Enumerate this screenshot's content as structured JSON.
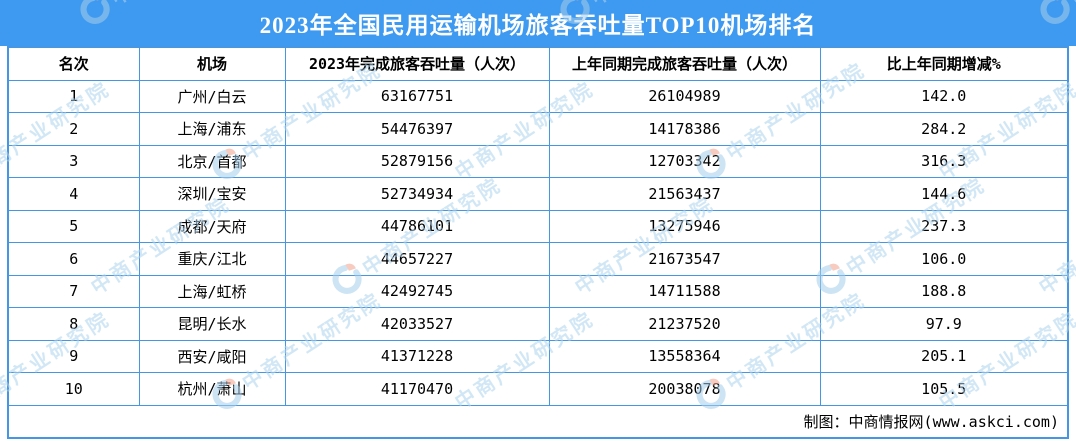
{
  "title": "2023年全国民用运输机场旅客吞吐量TOP10机场排名",
  "table": {
    "columns": [
      "名次",
      "机场",
      "2023年完成旅客吞吐量（人次）",
      "上年同期完成旅客吞吐量（人次）",
      "比上年同期增减%"
    ],
    "rows": [
      [
        "1",
        "广州/白云",
        "63167751",
        "26104989",
        "142.0"
      ],
      [
        "2",
        "上海/浦东",
        "54476397",
        "14178386",
        "284.2"
      ],
      [
        "3",
        "北京/首都",
        "52879156",
        "12703342",
        "316.3"
      ],
      [
        "4",
        "深圳/宝安",
        "52734934",
        "21563437",
        "144.6"
      ],
      [
        "5",
        "成都/天府",
        "44786101",
        "13275946",
        "237.3"
      ],
      [
        "6",
        "重庆/江北",
        "44657227",
        "21673547",
        "106.0"
      ],
      [
        "7",
        "上海/虹桥",
        "42492745",
        "14711588",
        "188.8"
      ],
      [
        "8",
        "昆明/长水",
        "42033527",
        "21237520",
        "97.9"
      ],
      [
        "9",
        "西安/咸阳",
        "41371228",
        "13558364",
        "205.1"
      ],
      [
        "10",
        "杭州/萧山",
        "41170470",
        "20038078",
        "105.5"
      ]
    ]
  },
  "footer": {
    "credit": "制图：中商情报网(www.askci.com)"
  },
  "watermark": {
    "text": "中商产业研究院",
    "logo": "askci-logo"
  },
  "chart_data": {
    "type": "table",
    "title": "2023年全国民用运输机场旅客吞吐量TOP10机场排名",
    "categories": [
      "广州/白云",
      "上海/浦东",
      "北京/首都",
      "深圳/宝安",
      "成都/天府",
      "重庆/江北",
      "上海/虹桥",
      "昆明/长水",
      "西安/咸阳",
      "杭州/萧山"
    ],
    "series": [
      {
        "name": "2023年完成旅客吞吐量（人次）",
        "values": [
          63167751,
          54476397,
          52879156,
          52734934,
          44786101,
          44657227,
          42492745,
          42033527,
          41371228,
          41170470
        ]
      },
      {
        "name": "上年同期完成旅客吞吐量（人次）",
        "values": [
          26104989,
          14178386,
          12703342,
          21563437,
          13275946,
          21673547,
          14711588,
          21237520,
          13558364,
          20038078
        ]
      },
      {
        "name": "比上年同期增减%",
        "values": [
          142.0,
          284.2,
          316.3,
          144.6,
          237.3,
          106.0,
          188.8,
          97.9,
          205.1,
          105.5
        ]
      }
    ]
  },
  "colors": {
    "header_bg": "#3E9AF0",
    "border": "#4697E3",
    "watermark": "#AFD4EE",
    "logo_blue": "#A6CEEC",
    "logo_orange": "#F2A28C"
  }
}
